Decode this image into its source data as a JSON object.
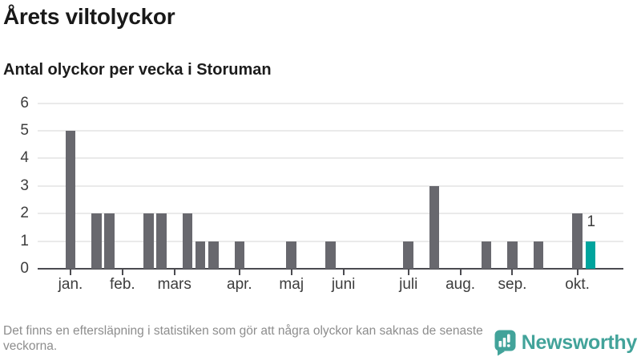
{
  "header": {
    "title": "Årets viltolyckor",
    "subtitle": "Antal olyckor per vecka i Storuman"
  },
  "chart_data": {
    "type": "bar",
    "title": "Årets viltolyckor",
    "subtitle": "Antal olyckor per vecka i Storuman",
    "x_unit": "vecka (week of year)",
    "x_range_weeks": [
      1,
      43
    ],
    "ylim": [
      0,
      6
    ],
    "yticks": [
      0,
      1,
      2,
      3,
      4,
      5,
      6
    ],
    "grid": "horizontal",
    "legend": "none",
    "bar_color": "#68686e",
    "highlight_color": "#00a49d",
    "months": [
      {
        "label": "jan.",
        "week": 1
      },
      {
        "label": "feb.",
        "week": 5
      },
      {
        "label": "mars",
        "week": 9
      },
      {
        "label": "apr.",
        "week": 14
      },
      {
        "label": "maj",
        "week": 18
      },
      {
        "label": "juni",
        "week": 22
      },
      {
        "label": "juli",
        "week": 27
      },
      {
        "label": "aug.",
        "week": 31
      },
      {
        "label": "sep.",
        "week": 35
      },
      {
        "label": "okt.",
        "week": 40
      }
    ],
    "bars": [
      {
        "week": 1,
        "value": 5
      },
      {
        "week": 3,
        "value": 2
      },
      {
        "week": 4,
        "value": 2
      },
      {
        "week": 7,
        "value": 2
      },
      {
        "week": 8,
        "value": 2
      },
      {
        "week": 10,
        "value": 2
      },
      {
        "week": 11,
        "value": 1
      },
      {
        "week": 12,
        "value": 1
      },
      {
        "week": 14,
        "value": 1
      },
      {
        "week": 18,
        "value": 1
      },
      {
        "week": 21,
        "value": 1
      },
      {
        "week": 27,
        "value": 1
      },
      {
        "week": 29,
        "value": 3
      },
      {
        "week": 33,
        "value": 1
      },
      {
        "week": 35,
        "value": 1
      },
      {
        "week": 37,
        "value": 1
      },
      {
        "week": 40,
        "value": 2
      },
      {
        "week": 41,
        "value": 1,
        "highlight": true,
        "label": "1"
      }
    ]
  },
  "footer": {
    "note": "Det finns en eftersläpning i statistiken som gör att några olyckor kan saknas de senaste veckorna.",
    "brand": "Newsworthy"
  }
}
